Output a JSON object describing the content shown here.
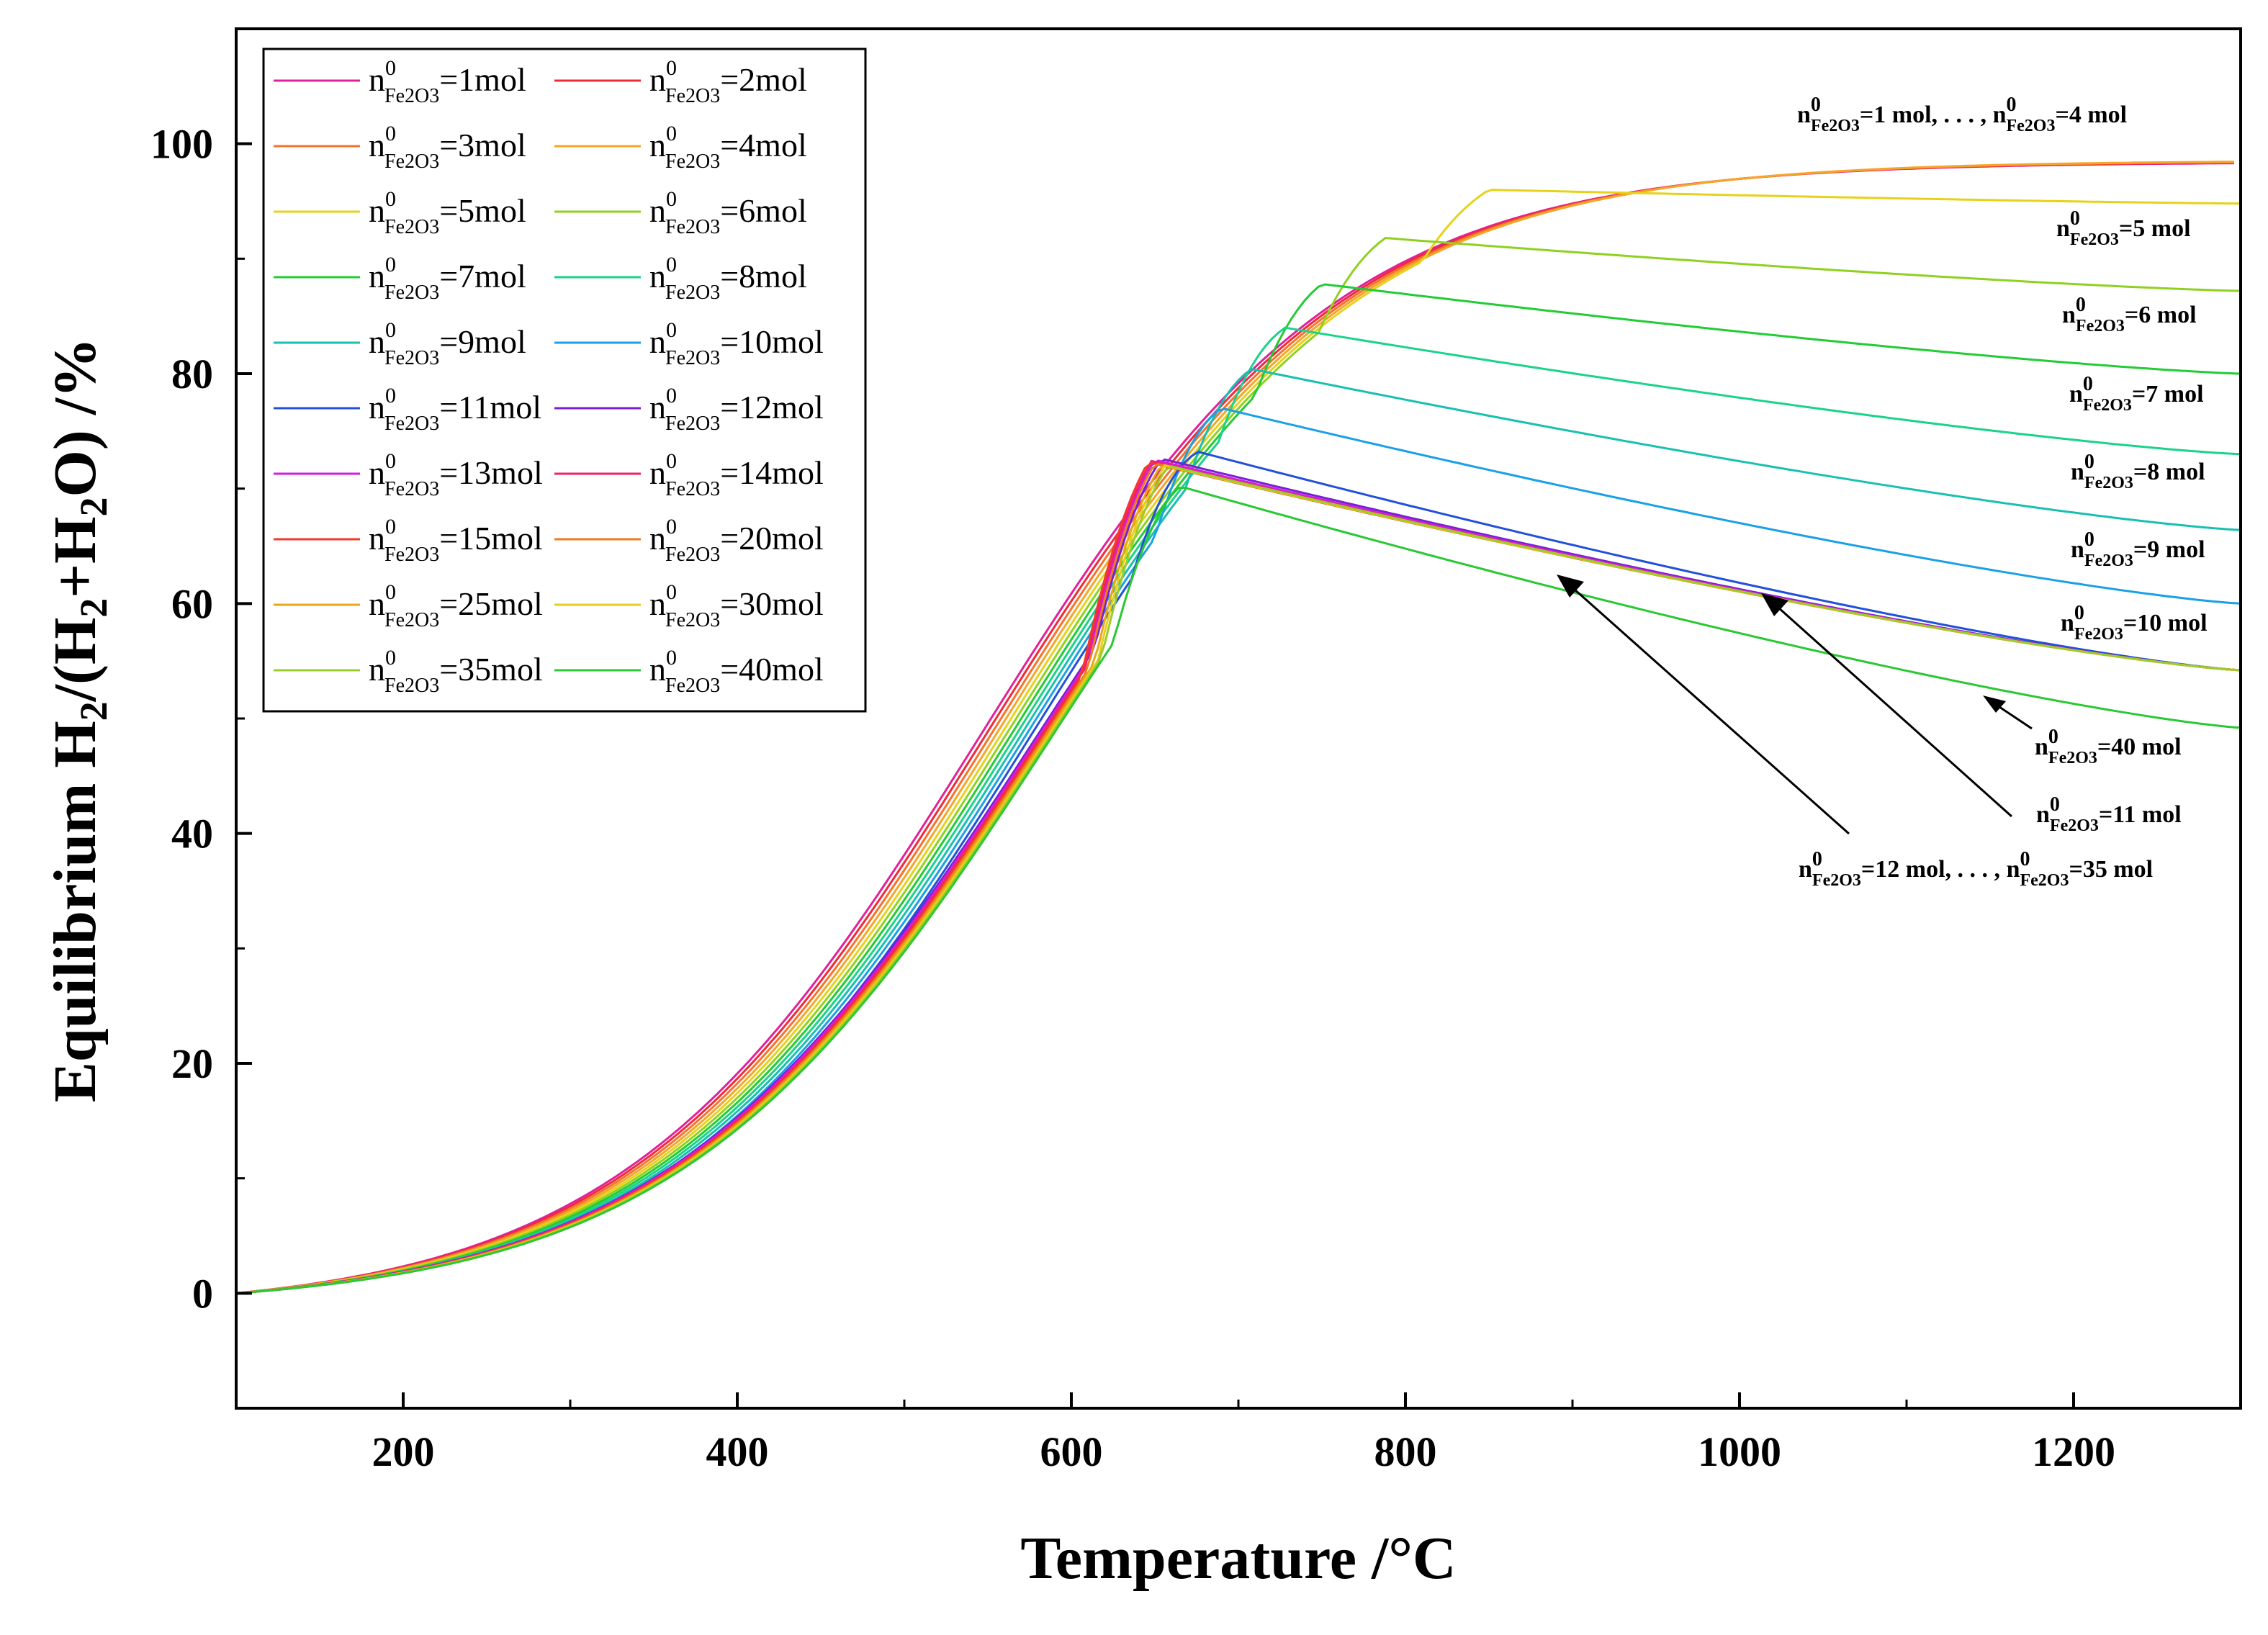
{
  "chart_data": {
    "type": "line",
    "xlabel": "Temperature /°C",
    "ylabel": "Equilibrium H2/(H2+H2O) /%",
    "ylabel_parts": {
      "a": "Equilibrium H",
      "b": "2",
      "c": "/(H",
      "d": "2",
      "e": "+H",
      "f": "2",
      "g": "O) /%"
    },
    "xlim": [
      100,
      1300
    ],
    "ylim": [
      -10,
      110
    ],
    "xticks": [
      200,
      400,
      600,
      800,
      1000,
      1200
    ],
    "yticks": [
      0,
      20,
      40,
      60,
      80,
      100
    ],
    "xtick_labels": [
      "200",
      "400",
      "600",
      "800",
      "1000",
      "1200"
    ],
    "ytick_labels": [
      "0",
      "20",
      "40",
      "60",
      "80",
      "100"
    ],
    "legend_position": "top-left",
    "legend_prefix": "n",
    "legend_sup": "0",
    "legend_sub": "Fe2O3",
    "series": [
      {
        "name": "=1mol",
        "amount": 1,
        "color": "#e0219a",
        "peak_x": 1300,
        "peak_y": 100,
        "end_y": 100
      },
      {
        "name": "=2mol",
        "amount": 2,
        "color": "#ef2a3a",
        "peak_x": 1300,
        "peak_y": 100,
        "end_y": 100
      },
      {
        "name": "=3mol",
        "amount": 3,
        "color": "#f5732a",
        "peak_x": 1300,
        "peak_y": 100,
        "end_y": 100
      },
      {
        "name": "=4mol",
        "amount": 4,
        "color": "#f4a62a",
        "peak_x": 1300,
        "peak_y": 100,
        "end_y": 100
      },
      {
        "name": "=5mol",
        "amount": 5,
        "color": "#e6d21a",
        "peak_x": 850,
        "peak_y": 96,
        "end_y": 94.8
      },
      {
        "name": "=6mol",
        "amount": 6,
        "color": "#8fd120",
        "peak_x": 788,
        "peak_y": 91.8,
        "end_y": 87.2
      },
      {
        "name": "=7mol",
        "amount": 7,
        "color": "#22cc33",
        "peak_x": 750,
        "peak_y": 87.8,
        "end_y": 80.0
      },
      {
        "name": "=8mol",
        "amount": 8,
        "color": "#1ad38a",
        "peak_x": 728,
        "peak_y": 84,
        "end_y": 73
      },
      {
        "name": "=9mol",
        "amount": 9,
        "color": "#18c0b0",
        "peak_x": 708,
        "peak_y": 80.4,
        "end_y": 66.4
      },
      {
        "name": "=10mol",
        "amount": 10,
        "color": "#1aa0e6",
        "peak_x": 690,
        "peak_y": 77,
        "end_y": 60
      },
      {
        "name": "=11mol",
        "amount": 11,
        "color": "#2250d8",
        "peak_x": 676,
        "peak_y": 73.2,
        "end_y": 54.2
      },
      {
        "name": "=12mol",
        "amount": 12,
        "color": "#7a1ed6",
        "peak_x": 654,
        "peak_y": 72.6,
        "end_y": 54.2
      },
      {
        "name": "=13mol",
        "amount": 13,
        "color": "#d21ee0",
        "peak_x": 650,
        "peak_y": 72.5,
        "end_y": 54.2
      },
      {
        "name": "=14mol",
        "amount": 14,
        "color": "#f0206e",
        "peak_x": 648,
        "peak_y": 72.4,
        "end_y": 54.2
      },
      {
        "name": "=15mol",
        "amount": 15,
        "color": "#f03a2a",
        "peak_x": 646,
        "peak_y": 72.3,
        "end_y": 54.2
      },
      {
        "name": "=20mol",
        "amount": 20,
        "color": "#f07a1c",
        "peak_x": 650,
        "peak_y": 72.2,
        "end_y": 54.2
      },
      {
        "name": "=25mol",
        "amount": 25,
        "color": "#e8a818",
        "peak_x": 654,
        "peak_y": 72.1,
        "end_y": 54.2
      },
      {
        "name": "=30mol",
        "amount": 30,
        "color": "#e6d01c",
        "peak_x": 656,
        "peak_y": 72.0,
        "end_y": 54.2
      },
      {
        "name": "=35mol",
        "amount": 35,
        "color": "#9ccc2a",
        "peak_x": 658,
        "peak_y": 72.0,
        "end_y": 54.2
      },
      {
        "name": "=40mol",
        "amount": 40,
        "color": "#2ac832",
        "peak_x": 665,
        "peak_y": 70.2,
        "end_y": 49.2
      }
    ],
    "annotations": [
      {
        "id": "a1",
        "prefix": "n",
        "sup": "0",
        "sub": "Fe2O3",
        "text": "=1 mol, . . . , ",
        "prefix2": "n",
        "sup2": "0",
        "sub2": "Fe2O3",
        "text2": "=4 mol"
      },
      {
        "id": "a5",
        "prefix": "n",
        "sup": "0",
        "sub": "Fe2O3",
        "text": "=5 mol"
      },
      {
        "id": "a6",
        "prefix": "n",
        "sup": "0",
        "sub": "Fe2O3",
        "text": "=6 mol"
      },
      {
        "id": "a7",
        "prefix": "n",
        "sup": "0",
        "sub": "Fe2O3",
        "text": "=7 mol"
      },
      {
        "id": "a8",
        "prefix": "n",
        "sup": "0",
        "sub": "Fe2O3",
        "text": "=8 mol"
      },
      {
        "id": "a9",
        "prefix": "n",
        "sup": "0",
        "sub": "Fe2O3",
        "text": "=9 mol"
      },
      {
        "id": "a10",
        "prefix": "n",
        "sup": "0",
        "sub": "Fe2O3",
        "text": "=10 mol"
      },
      {
        "id": "a40",
        "prefix": "n",
        "sup": "0",
        "sub": "Fe2O3",
        "text": "=40 mol"
      },
      {
        "id": "a11",
        "prefix": "n",
        "sup": "0",
        "sub": "Fe2O3",
        "text": "=11 mol"
      },
      {
        "id": "a12",
        "prefix": "n",
        "sup": "0",
        "sub": "Fe2O3",
        "text": "=12 mol, . . . , ",
        "prefix2": "n",
        "sup2": "0",
        "sub2": "Fe2O3",
        "text2": "=35 mol"
      }
    ]
  }
}
